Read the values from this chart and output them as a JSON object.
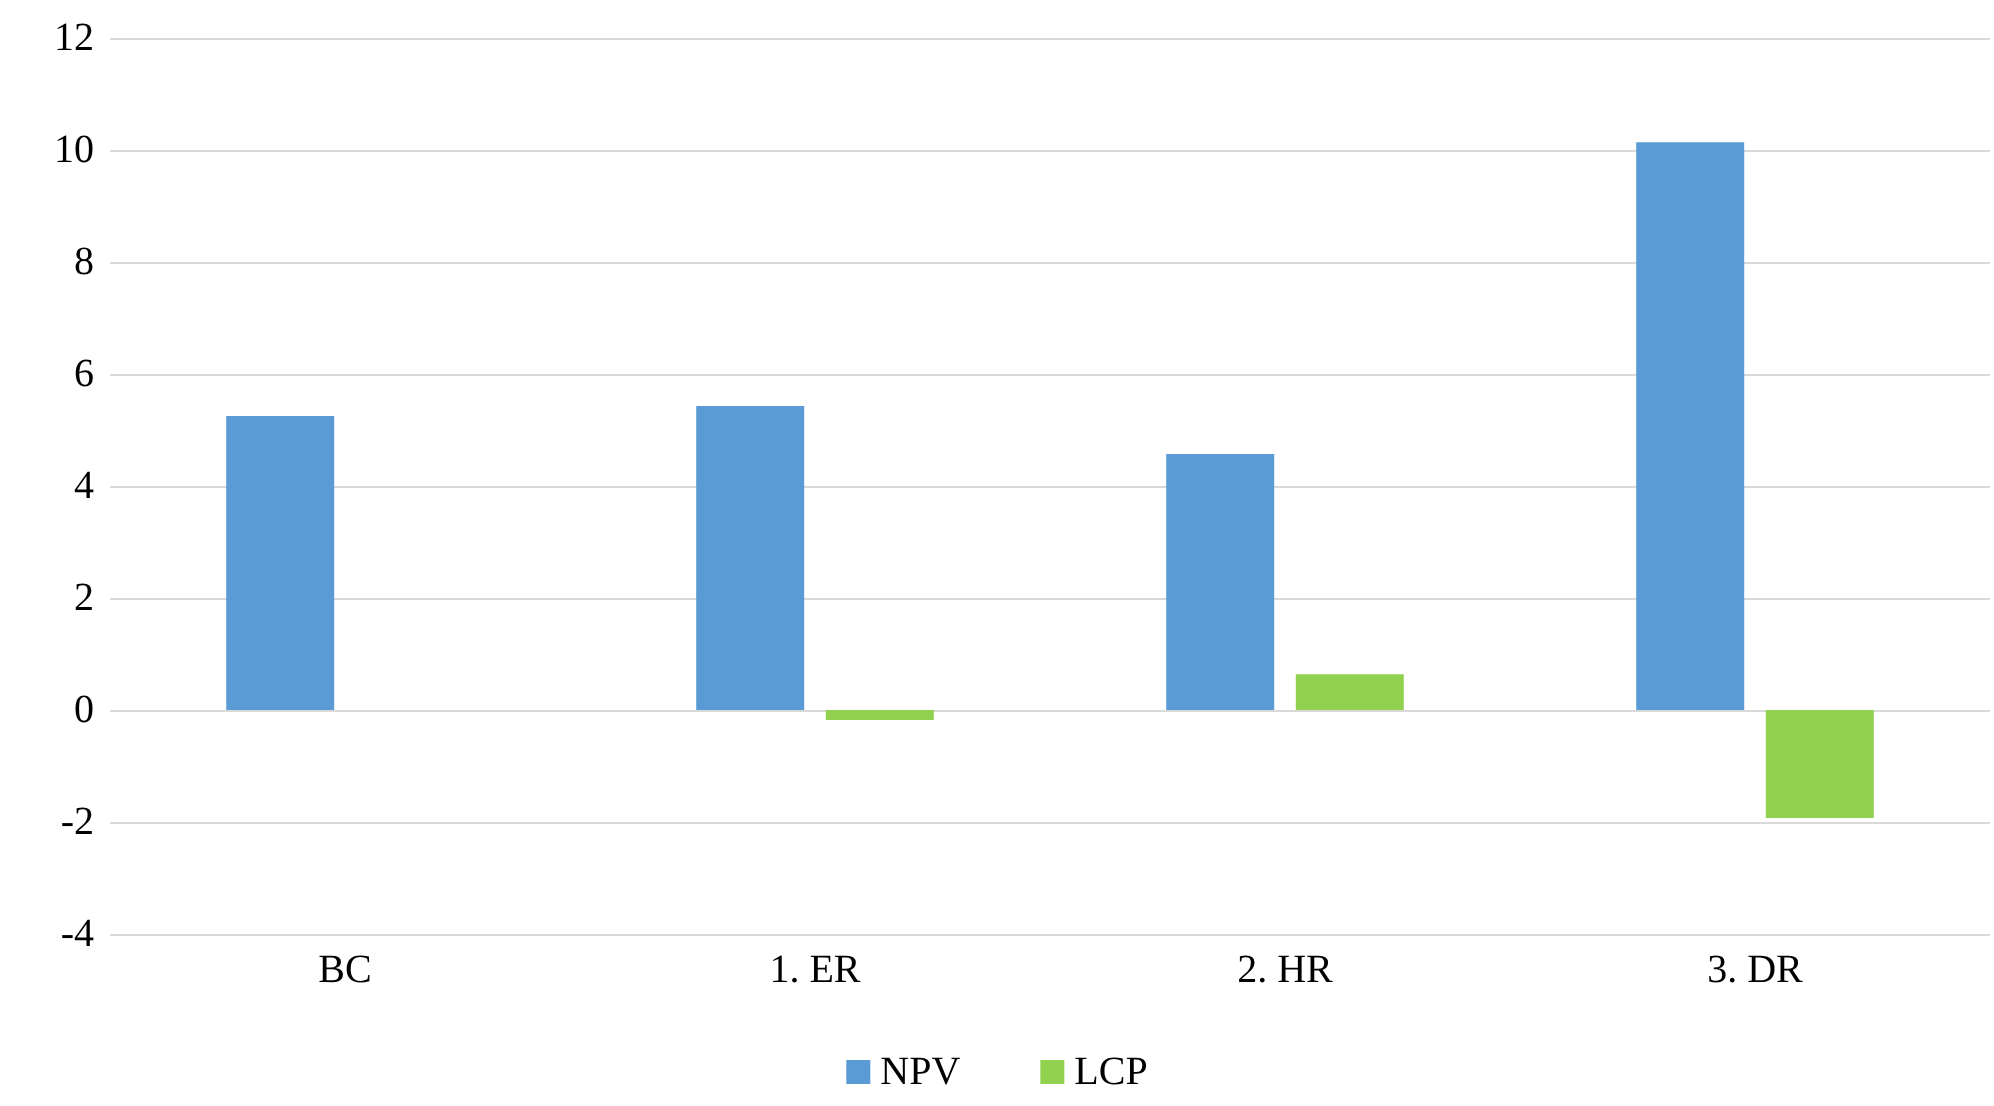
{
  "chart_data": {
    "type": "bar",
    "categories": [
      "BC",
      "1. ER",
      "2. HR",
      "3. DR"
    ],
    "series": [
      {
        "name": "NPV",
        "color": "#5b9bd5",
        "values": [
          5.25,
          5.43,
          4.57,
          10.14
        ]
      },
      {
        "name": "LCP",
        "color": "#92d050",
        "values": [
          null,
          -0.18,
          0.64,
          -1.93
        ]
      }
    ],
    "ylim": [
      -4,
      12
    ],
    "yticks": [
      -4,
      -2,
      0,
      2,
      4,
      6,
      8,
      10,
      12
    ],
    "grid": "y",
    "legend": "bottom"
  }
}
